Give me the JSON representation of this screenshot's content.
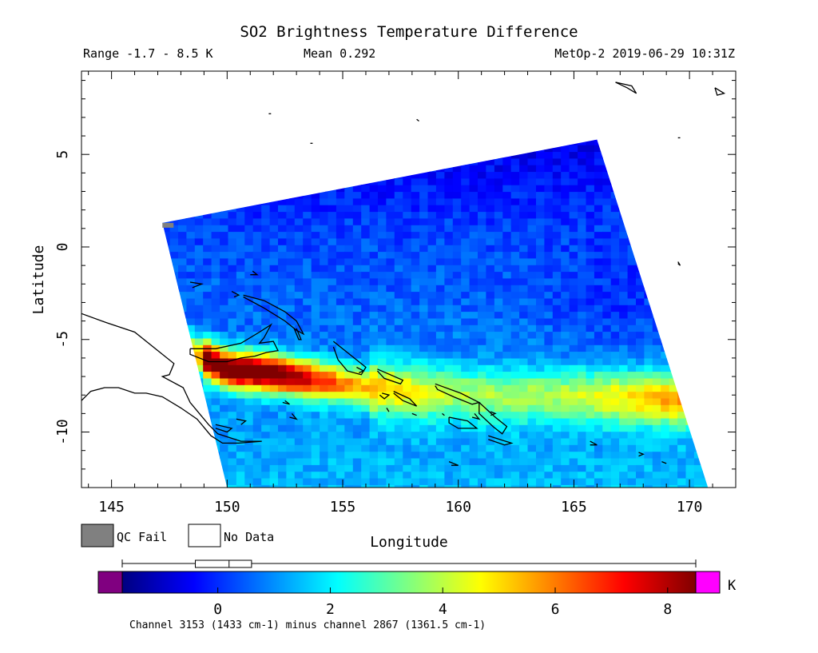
{
  "chart_data": {
    "type": "heatmap",
    "title": "SO2 Brightness Temperature Difference",
    "header": {
      "range": "Range -1.7 - 8.5 K",
      "mean": "Mean 0.292",
      "source": "MetOp-2 2019-06-29 10:31Z"
    },
    "xlabel": "Longitude",
    "ylabel": "Latitude",
    "xlim": [
      143.7,
      172.0
    ],
    "ylim": [
      -13.0,
      9.5
    ],
    "x_ticks": [
      145,
      150,
      155,
      160,
      165,
      170
    ],
    "y_ticks": [
      5,
      0,
      -5,
      -10
    ],
    "swath_corners": {
      "top_left": [
        147.2,
        1.3
      ],
      "top_right": [
        166.0,
        5.8
      ],
      "bottom_right": [
        170.8,
        -13.0
      ],
      "bottom_left": [
        150.0,
        -13.0
      ]
    },
    "plume": {
      "description_points": [
        [
          148.5,
          -5.7
        ],
        [
          150.0,
          -6.6
        ],
        [
          152.0,
          -6.8
        ],
        [
          154.0,
          -7.2
        ],
        [
          157.0,
          -7.7
        ],
        [
          161.0,
          -8.0
        ],
        [
          165.0,
          -8.0
        ],
        [
          169.0,
          -8.2
        ]
      ],
      "peak_value": 8.5
    },
    "legend": {
      "qc_fail_label": "QC Fail",
      "no_data_label": "No Data",
      "qc_fail_color": "#808080",
      "no_data_color": "#ffffff"
    },
    "colorbar": {
      "unit": "K",
      "min": -1.7,
      "max": 8.5,
      "ticks": [
        0,
        2,
        4,
        6,
        8
      ],
      "low_color": "#800080",
      "high_color": "#ff00ff",
      "stops": [
        "#000080",
        "#0000ff",
        "#0080ff",
        "#00ffff",
        "#80ff80",
        "#ffff00",
        "#ff8000",
        "#ff0000",
        "#800000"
      ],
      "boxplot": {
        "whisker_low": -1.7,
        "q1": -0.4,
        "median": 0.2,
        "q3": 0.6,
        "whisker_high": 8.5
      },
      "caption": "Channel 3153 (1433 cm-1) minus channel 2867 (1361.5 cm-1)"
    }
  }
}
